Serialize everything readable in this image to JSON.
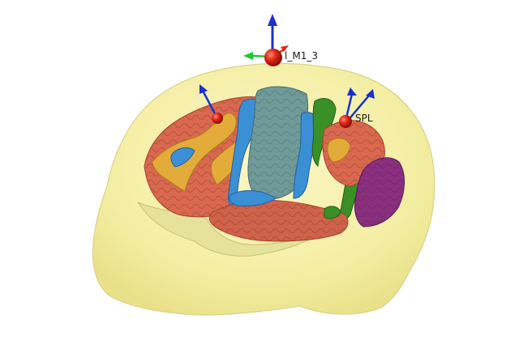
{
  "viewer": {
    "markers": [
      {
        "id": "marker-m1",
        "label": "l_M1_3",
        "color": "#dd1a12"
      },
      {
        "id": "marker-spl",
        "label": "SPL",
        "color": "#e32a16"
      },
      {
        "id": "marker-frontal",
        "label": "",
        "color": "#e4341a"
      }
    ]
  },
  "colors": {
    "head": "#f6f1a6",
    "head_edge": "#e0d98b",
    "frontal": "#d9684f",
    "frontal_yellow": "#e3ac3a",
    "precentral_blue": "#3b8fd4",
    "central_gray": "#6f9a99",
    "postcentral_green": "#3a8f27",
    "parietal_purple": "#8a2f7e",
    "temporal": "#d0624a",
    "cerebellum_pale": "#e7e49a",
    "arrow_blue": "#1a2fd4",
    "arrow_green": "#22c832",
    "marker_red": "#e32a16"
  }
}
